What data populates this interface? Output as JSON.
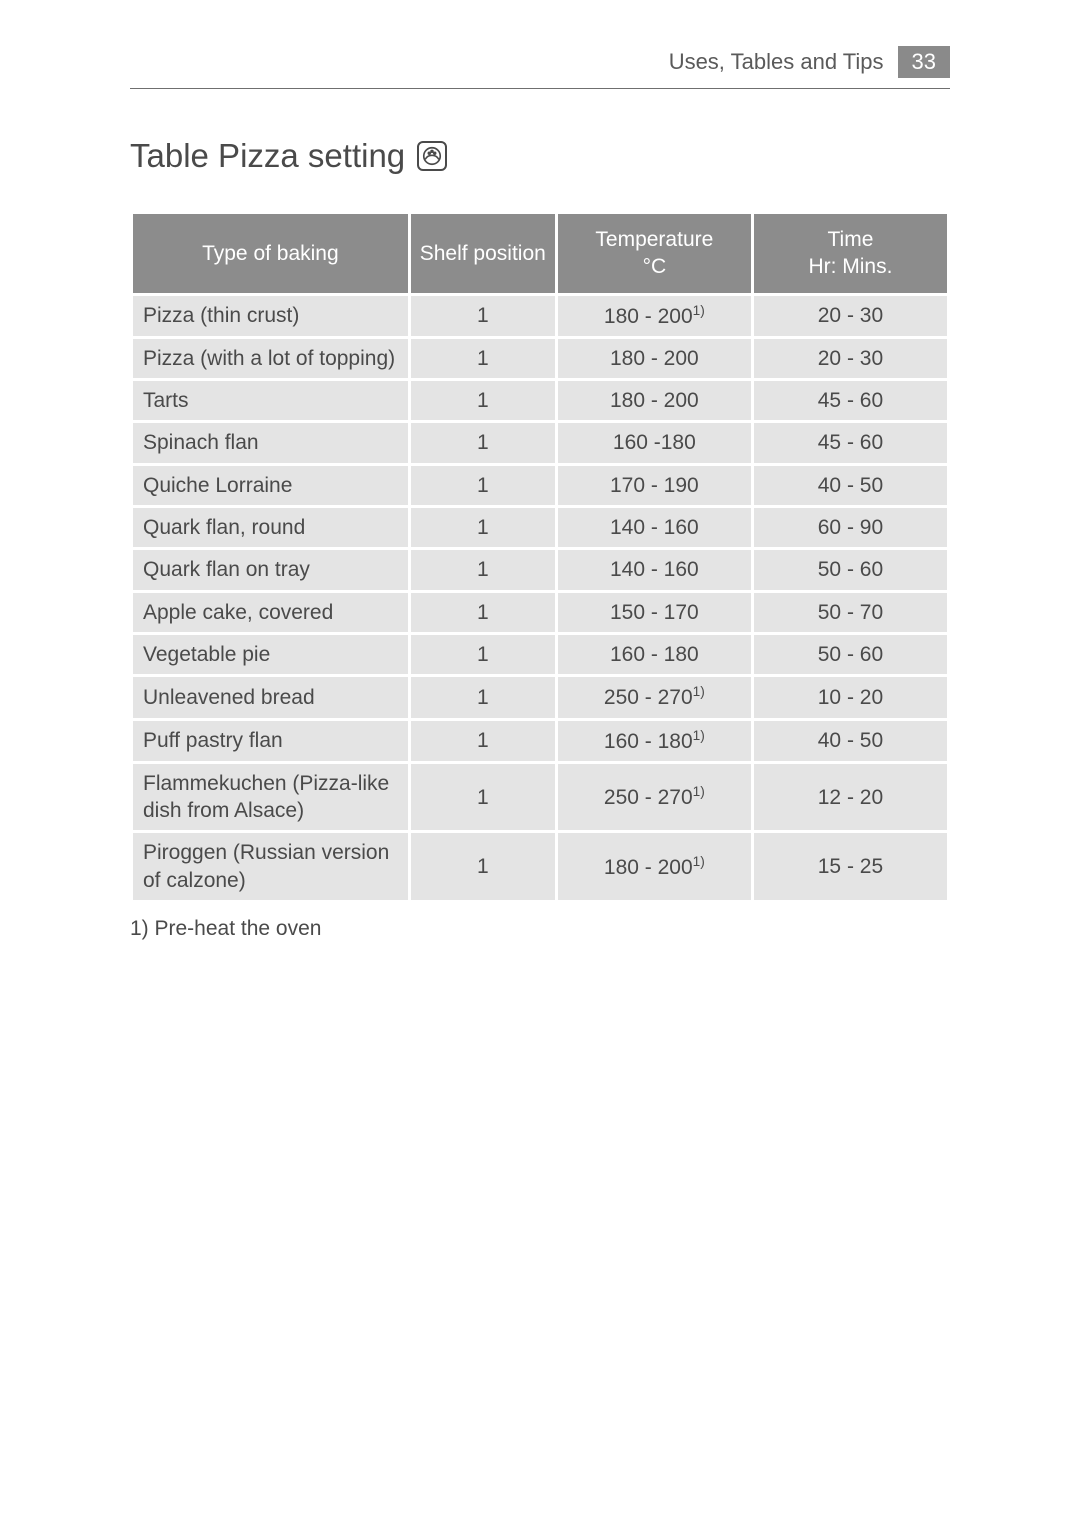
{
  "header": {
    "breadcrumb": "Uses, Tables and Tips",
    "page_number": "33"
  },
  "section_title": "Table Pizza setting",
  "icon_name": "pizza-icon",
  "table": {
    "headers": {
      "type": "Type of baking",
      "shelf": "Shelf position",
      "temp_line1": "Temperature",
      "temp_line2": "°C",
      "time_line1": "Time",
      "time_line2": "Hr: Mins."
    },
    "rows": [
      {
        "type": "Pizza (thin crust)",
        "shelf": "1",
        "temp": "180 - 200",
        "temp_note": "1)",
        "time": "20 - 30"
      },
      {
        "type": "Pizza (with a lot of topping)",
        "shelf": "1",
        "temp": "180 - 200",
        "temp_note": "",
        "time": "20 - 30"
      },
      {
        "type": "Tarts",
        "shelf": "1",
        "temp": "180 - 200",
        "temp_note": "",
        "time": "45 - 60"
      },
      {
        "type": "Spinach flan",
        "shelf": "1",
        "temp": "160 -180",
        "temp_note": "",
        "time": "45 - 60"
      },
      {
        "type": "Quiche Lorraine",
        "shelf": "1",
        "temp": "170 - 190",
        "temp_note": "",
        "time": "40 - 50"
      },
      {
        "type": "Quark flan, round",
        "shelf": "1",
        "temp": "140 - 160",
        "temp_note": "",
        "time": "60 - 90"
      },
      {
        "type": "Quark flan on tray",
        "shelf": "1",
        "temp": "140 - 160",
        "temp_note": "",
        "time": "50 - 60"
      },
      {
        "type": "Apple cake, covered",
        "shelf": "1",
        "temp": "150 - 170",
        "temp_note": "",
        "time": "50 - 70"
      },
      {
        "type": "Vegetable pie",
        "shelf": "1",
        "temp": "160 - 180",
        "temp_note": "",
        "time": "50 - 60"
      },
      {
        "type": "Unleavened bread",
        "shelf": "1",
        "temp": "250 - 270",
        "temp_note": "1)",
        "time": "10 - 20"
      },
      {
        "type": "Puff pastry flan",
        "shelf": "1",
        "temp": "160 - 180",
        "temp_note": "1)",
        "time": "40 - 50"
      },
      {
        "type": "Flammekuchen (Pizza-like dish from Alsace)",
        "shelf": "1",
        "temp": "250 - 270",
        "temp_note": "1)",
        "time": "12 - 20"
      },
      {
        "type": "Piroggen (Russian version of calzone)",
        "shelf": "1",
        "temp": "180 - 200",
        "temp_note": "1)",
        "time": "15 - 25"
      }
    ]
  },
  "footnote": "1) Pre-heat the oven",
  "colors": {
    "header_bg": "#8c8c8c",
    "row_bg": "#e4e4e4",
    "text": "#4a4a4a",
    "badge_bg": "#8a8a8a"
  }
}
